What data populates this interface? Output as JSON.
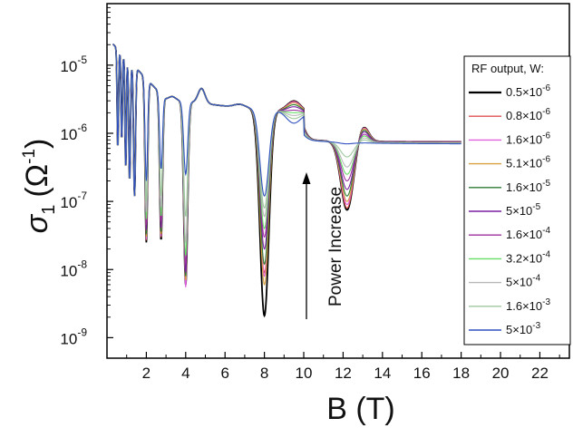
{
  "chart_data": {
    "type": "line",
    "xlabel": "B (T)",
    "ylabel_main": "σ",
    "ylabel_sub": "1",
    "ylabel_unit": "(Ω",
    "ylabel_unit_sup": "-1",
    "ylabel_unit_close": ")",
    "y_scale": "log",
    "xlim": [
      0,
      23.5
    ],
    "ylim": [
      5e-10,
      8e-05
    ],
    "x_ticks": [
      2,
      4,
      6,
      8,
      10,
      12,
      14,
      16,
      18,
      20,
      22
    ],
    "x_tick_labels": [
      "2",
      "4",
      "6",
      "8",
      "10",
      "12",
      "14",
      "16",
      "18",
      "20",
      "22"
    ],
    "y_ticks": [
      {
        "value": 1e-09,
        "base": "10",
        "exp": "-9"
      },
      {
        "value": 1e-08,
        "base": "10",
        "exp": "-8"
      },
      {
        "value": 1e-07,
        "base": "10",
        "exp": "-7"
      },
      {
        "value": 1e-06,
        "base": "10",
        "exp": "-6"
      },
      {
        "value": 1e-05,
        "base": "10",
        "exp": "-5"
      }
    ],
    "grid": false,
    "legend_title": "RF output, W:",
    "legend_position": "right",
    "annotation": {
      "text": "Power Increase",
      "direction": "up"
    },
    "series": [
      {
        "name": "0.5×10",
        "exp": "-6",
        "color": "#000000",
        "features": {
          "d2": 2.5e-08,
          "d28": 2.7e-08,
          "d4": 6e-09,
          "d8": 2.1e-09,
          "d12": 7.5e-08,
          "p95": 3.1e-06,
          "tail": 7.5e-07
        }
      },
      {
        "name": "0.8×10",
        "exp": "-6",
        "color": "#e05050",
        "features": {
          "d2": 2.7e-08,
          "d28": 2.9e-08,
          "d4": 6.5e-09,
          "d8": 9e-09,
          "d12": 8e-08,
          "p95": 3.05e-06,
          "tail": 7.5e-07
        }
      },
      {
        "name": "1.6×10",
        "exp": "-6",
        "color": "#e060e0",
        "features": {
          "d2": 2.8e-08,
          "d28": 3e-08,
          "d4": 5.5e-09,
          "d8": 8e-09,
          "d12": 9e-08,
          "p95": 3e-06,
          "tail": 7.5e-07
        }
      },
      {
        "name": "5.1×10",
        "exp": "-6",
        "color": "#d8a040",
        "features": {
          "d2": 3e-08,
          "d28": 3.2e-08,
          "d4": 7e-09,
          "d8": 6e-09,
          "d12": 1e-07,
          "p95": 2.9e-06,
          "tail": 7.4e-07
        }
      },
      {
        "name": "1.6×10",
        "exp": "-5",
        "color": "#2e7d32",
        "features": {
          "d2": 3.3e-08,
          "d28": 3.5e-08,
          "d4": 8e-09,
          "d8": 1.2e-08,
          "d12": 1.2e-07,
          "p95": 2.7e-06,
          "tail": 7.4e-07
        }
      },
      {
        "name": "5×10",
        "exp": "-5",
        "color": "#7b1fa2",
        "features": {
          "d2": 3.8e-08,
          "d28": 4e-08,
          "d4": 9e-09,
          "d8": 2e-08,
          "d12": 1.5e-07,
          "p95": 2.5e-06,
          "tail": 7.3e-07
        }
      },
      {
        "name": "1.6×10",
        "exp": "-4",
        "color": "#a030a0",
        "features": {
          "d2": 4.5e-08,
          "d28": 5e-08,
          "d4": 1.2e-08,
          "d8": 3e-08,
          "d12": 2e-07,
          "p95": 2.2e-06,
          "tail": 7.3e-07
        }
      },
      {
        "name": "3.2×10",
        "exp": "-4",
        "color": "#66dd66",
        "features": {
          "d2": 5.5e-08,
          "d28": 6e-08,
          "d4": 1.6e-08,
          "d8": 4e-08,
          "d12": 2.5e-07,
          "p95": 2e-06,
          "tail": 7.2e-07
        }
      },
      {
        "name": "5×10",
        "exp": "-4",
        "color": "#b8b8b8",
        "features": {
          "d2": 7e-08,
          "d28": 8e-08,
          "d4": 2.5e-08,
          "d8": 6e-08,
          "d12": 3.2e-07,
          "p95": 1.8e-06,
          "tail": 7.2e-07
        }
      },
      {
        "name": "1.6×10",
        "exp": "-3",
        "color": "#9ec89e",
        "features": {
          "d2": 1e-07,
          "d28": 1.2e-07,
          "d4": 6e-08,
          "d8": 8e-08,
          "d12": 4.5e-07,
          "p95": 1.6e-06,
          "tail": 7.1e-07
        }
      },
      {
        "name": "5×10",
        "exp": "-3",
        "color": "#3050c0",
        "features": {
          "d2": 2e-07,
          "d28": 3e-07,
          "d4": 2.5e-07,
          "d8": 1.2e-07,
          "d12": 7e-07,
          "p95": 1.35e-06,
          "tail": 7e-07
        }
      }
    ]
  }
}
